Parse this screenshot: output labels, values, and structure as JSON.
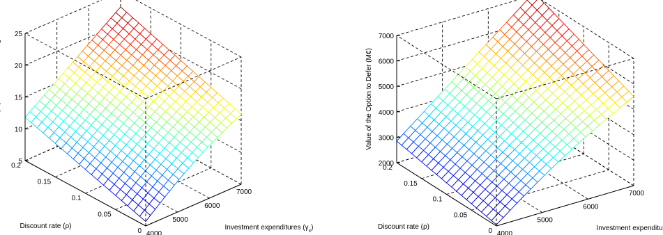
{
  "chart_data": [
    {
      "type": "surface",
      "zlabel": "Critical Demand (x*) - Million of Passengers",
      "ylabel": "Discount rate (ρ)",
      "xlabel": "Investment expenditures (γx)",
      "x_ticks": [
        "4000",
        "5000",
        "6000",
        "7000"
      ],
      "y_ticks": [
        "0",
        "0.05",
        "0.1",
        "0.15",
        "0.2"
      ],
      "z_ticks": [
        "5",
        "10",
        "15",
        "20",
        "25"
      ],
      "xlim": [
        4000,
        7000
      ],
      "ylim": [
        0,
        0.2
      ],
      "zlim": [
        5,
        25
      ],
      "x": [
        4000,
        7000
      ],
      "y": [
        0,
        0.2
      ],
      "z_corners": {
        "x0_y0": 5.7,
        "x0_y1": 11.8,
        "x1_y0": 16.0,
        "x1_y1": 22.6
      },
      "colormap": "jet",
      "grid": true
    },
    {
      "type": "surface",
      "zlabel": "Value of the Option to Defer (M€)",
      "ylabel": "Discount rate (ρ)",
      "xlabel": "Investment expenditures (γx)",
      "x_ticks": [
        "4000",
        "5000",
        "6000",
        "7000"
      ],
      "y_ticks": [
        "0",
        "0.05",
        "0.1",
        "0.15",
        "0.2"
      ],
      "z_ticks": [
        "2000",
        "3000",
        "4000",
        "5000",
        "6000",
        "7000"
      ],
      "xlim": [
        4000,
        7000
      ],
      "ylim": [
        0,
        0.2
      ],
      "zlim": [
        2000,
        7000
      ],
      "x": [
        4000,
        7000
      ],
      "y": [
        0,
        0.2
      ],
      "z_corners": {
        "x0_y0": 2050,
        "x0_y1": 2850,
        "x1_y0": 5500,
        "x1_y1": 7100
      },
      "colormap": "jet",
      "grid": true
    }
  ]
}
